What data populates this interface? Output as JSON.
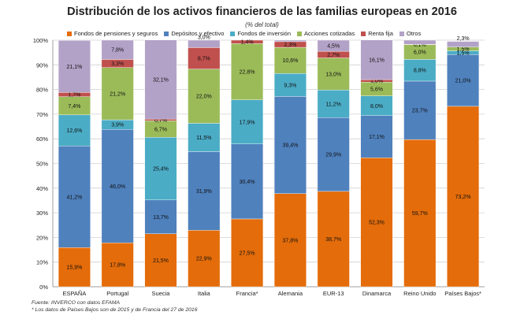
{
  "chart_data": {
    "type": "bar",
    "stacked": true,
    "title": "Distribución de los activos financieros de las familias europeas en 2016",
    "subtitle": "(% del total)",
    "categories": [
      "ESPAÑA",
      "Portugal",
      "Suecia",
      "Italia",
      "Francia*",
      "Alemania",
      "EUR-13",
      "Dinamarca",
      "Reino Unido",
      "Países Bajos*"
    ],
    "ylim": [
      0,
      100
    ],
    "yticks": [
      "0%",
      "10%",
      "20%",
      "30%",
      "40%",
      "50%",
      "60%",
      "70%",
      "80%",
      "90%",
      "100%"
    ],
    "grid": true,
    "legend_position": "top",
    "series": [
      {
        "name": "Fondos de pensiones y seguros",
        "color": "#E46C0A",
        "values": [
          15.9,
          17.8,
          21.5,
          22.9,
          27.5,
          37.8,
          38.7,
          52.3,
          59.7,
          73.2
        ],
        "labels": [
          "15,9%",
          "17,8%",
          "21,5%",
          "22,9%",
          "27,5%",
          "37,8%",
          "38,7%",
          "52,3%",
          "59,7%",
          "73,2%"
        ]
      },
      {
        "name": "Depósitos y efectivo",
        "color": "#4F81BD",
        "values": [
          41.2,
          46.0,
          13.7,
          31.9,
          30.4,
          39.4,
          29.9,
          17.1,
          23.7,
          21.0
        ],
        "labels": [
          "41,2%",
          "46,0%",
          "13,7%",
          "31,9%",
          "30,4%",
          "39,4%",
          "29,9%",
          "17,1%",
          "23,7%",
          "21,0%"
        ]
      },
      {
        "name": "Fondos de inversión",
        "color": "#4BACC6",
        "values": [
          12.6,
          3.9,
          25.4,
          11.5,
          17.9,
          9.3,
          11.2,
          8.0,
          8.8,
          1.5
        ],
        "labels": [
          "12,6%",
          "3,9%",
          "25,4%",
          "11,5%",
          "17,9%",
          "9,3%",
          "11,2%",
          "8,0%",
          "8,8%",
          "1,5%"
        ]
      },
      {
        "name": "Acciones cotizadas",
        "color": "#9BBB59",
        "values": [
          7.4,
          21.2,
          6.7,
          22.0,
          22.8,
          10.6,
          13.0,
          5.6,
          6.0,
          1.5
        ],
        "labels": [
          "7,4%",
          "21,2%",
          "6,7%",
          "22,0%",
          "22,8%",
          "10,6%",
          "13,0%",
          "5,6%",
          "6,0%",
          "1,5%"
        ]
      },
      {
        "name": "Renta fija",
        "color": "#C0504D",
        "values": [
          1.7,
          3.3,
          0.7,
          8.7,
          1.4,
          2.3,
          2.7,
          1.0,
          0.1,
          0.0
        ],
        "labels": [
          "1,7%",
          "3,3%",
          "0,7%",
          "8,7%",
          "1,4%",
          "2,3%",
          "2,7%",
          "1,0%",
          "0,1%",
          ""
        ]
      },
      {
        "name": "Otros",
        "color": "#B3A2C7",
        "values": [
          21.1,
          7.8,
          32.1,
          3.0,
          0.0,
          0.6,
          4.5,
          16.1,
          1.7,
          2.3
        ],
        "labels": [
          "21,1%",
          "7,8%",
          "32,1%",
          "3,0%",
          "",
          "",
          "4,5%",
          "16,1%",
          "",
          "2,3%"
        ]
      }
    ]
  },
  "footnotes": {
    "source": "Fuente: INVERCO con datos EFAMA",
    "note": "* Los datos de Países Bajos son de 2015 y de Francia del 27 de 2016"
  }
}
